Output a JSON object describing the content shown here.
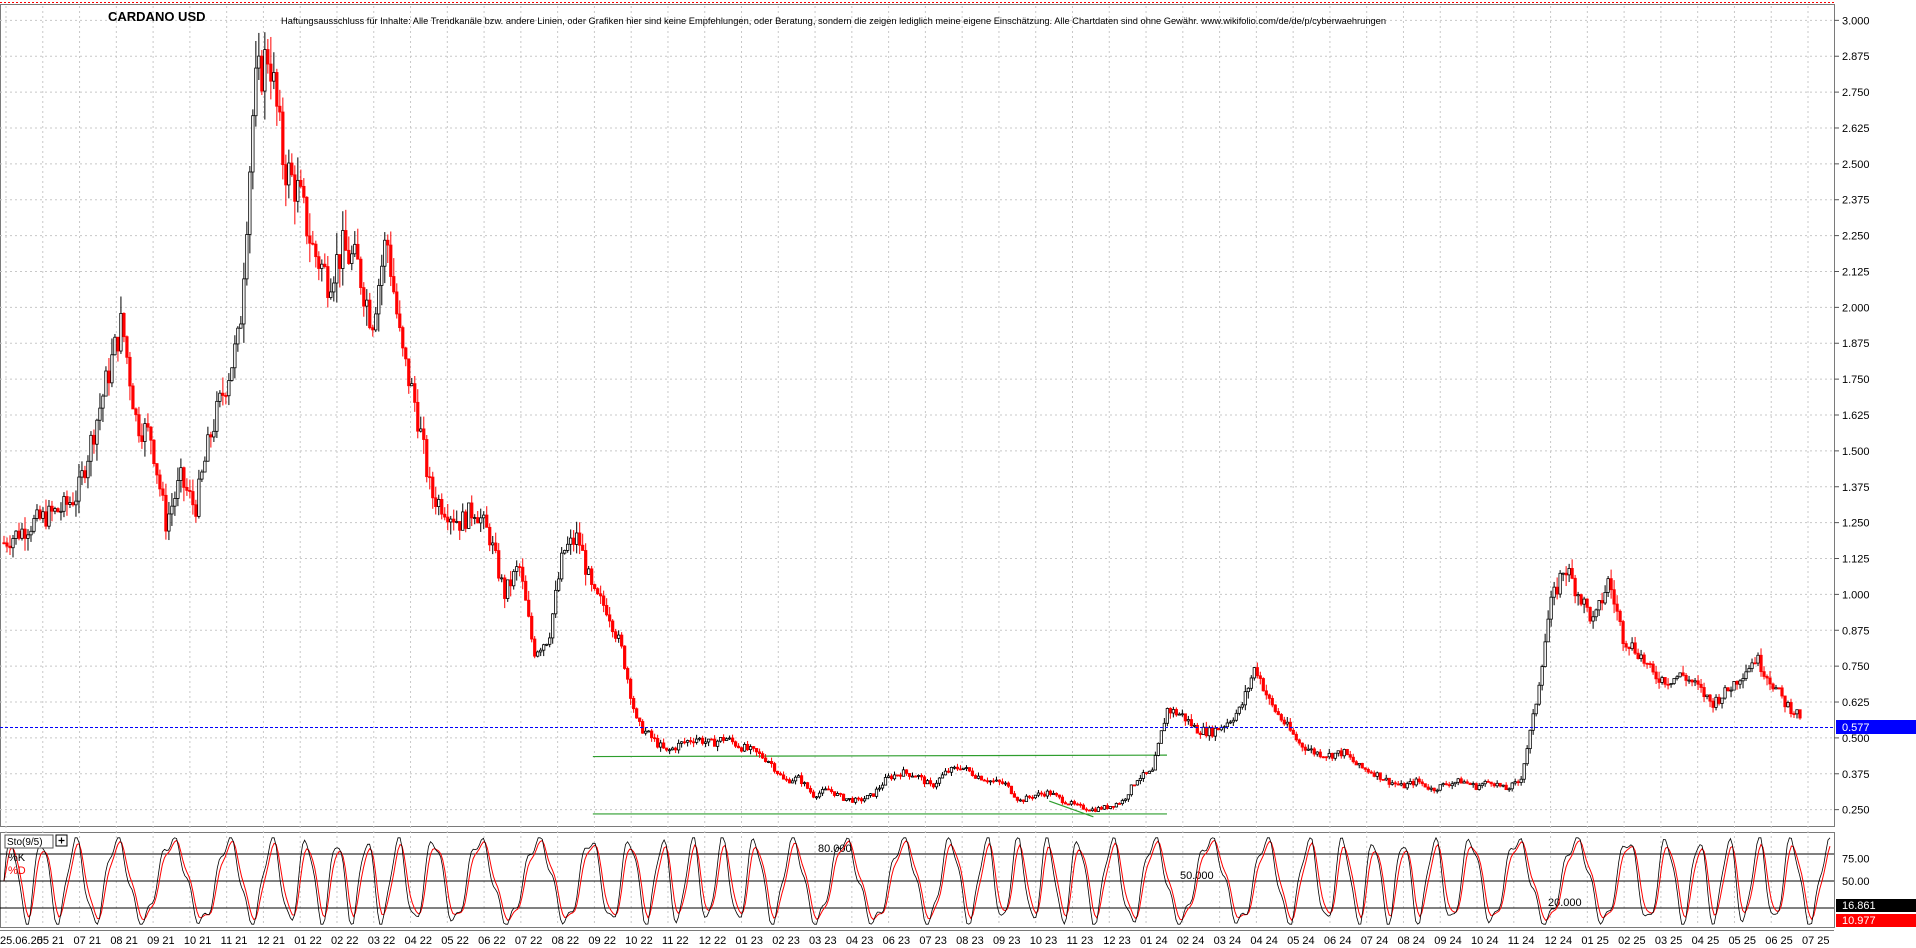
{
  "title": "CARDANO USD",
  "disclaimer": "Haftungsausschluss für Inhalte: Alle Trendkanäle bzw. andere Linien, oder Grafiken hier sind keine Empfehlungen, oder Beratung, sondern die zeigen lediglich meine eigene Einschätzung. Alle Chartdaten sind ohne Gewähr. www.wikifolio.com/de/de/p/cyberwaehrungen",
  "colors": {
    "up": "#000000",
    "down": "#ff0000",
    "trend": "#2e9e2e",
    "price_badge": "#0000ff",
    "k_badge": "#000000",
    "d_badge": "#ff0000",
    "grid": "#c8c8c8",
    "stoch_k": "#000000",
    "stoch_d": "#ff0000"
  },
  "chart_data": [
    {
      "type": "candlestick",
      "title": "CARDANO USD",
      "ylim": [
        0.2,
        3.05
      ],
      "y_ticks": [
        "3.000",
        "2.875",
        "2.750",
        "2.625",
        "2.500",
        "2.375",
        "2.250",
        "2.125",
        "2.000",
        "1.875",
        "1.750",
        "1.625",
        "1.500",
        "1.375",
        "1.250",
        "1.125",
        "1.000",
        "0.875",
        "0.750",
        "0.625",
        "0.500",
        "0.375",
        "0.250"
      ],
      "x_ticks": [
        "25.06.25",
        "05 21",
        "07 21",
        "08 21",
        "09 21",
        "10 21",
        "11 21",
        "12 21",
        "01 22",
        "02 22",
        "03 22",
        "04 22",
        "05 22",
        "06 22",
        "07 22",
        "08 22",
        "09 22",
        "10 22",
        "11 22",
        "12 22",
        "01 23",
        "02 23",
        "03 23",
        "04 23",
        "06 23",
        "07 23",
        "08 23",
        "09 23",
        "10 23",
        "11 23",
        "12 23",
        "01 24",
        "02 24",
        "03 24",
        "04 24",
        "05 24",
        "06 24",
        "07 24",
        "08 24",
        "09 24",
        "10 24",
        "11 24",
        "12 24",
        "01 25",
        "02 25",
        "03 25",
        "04 25",
        "05 25",
        "06 25",
        "07 25"
      ],
      "last_price": "0.577",
      "grid": true,
      "price_path": [
        [
          0,
          1.18
        ],
        [
          2,
          1.25
        ],
        [
          4,
          1.3
        ],
        [
          5,
          1.35
        ],
        [
          6,
          1.55
        ],
        [
          7,
          1.75
        ],
        [
          8,
          1.95
        ],
        [
          9,
          1.6
        ],
        [
          10,
          1.55
        ],
        [
          11,
          1.25
        ],
        [
          12,
          1.4
        ],
        [
          13,
          1.3
        ],
        [
          14,
          1.55
        ],
        [
          16,
          1.9
        ],
        [
          17,
          2.75
        ],
        [
          18,
          2.9
        ],
        [
          19,
          2.5
        ],
        [
          20,
          2.4
        ],
        [
          21,
          2.2
        ],
        [
          22,
          2.1
        ],
        [
          23,
          2.2
        ],
        [
          24,
          2.15
        ],
        [
          25,
          1.95
        ],
        [
          26,
          2.25
        ],
        [
          27,
          1.85
        ],
        [
          28,
          1.65
        ],
        [
          29,
          1.35
        ],
        [
          30,
          1.3
        ],
        [
          31,
          1.25
        ],
        [
          32,
          1.3
        ],
        [
          33,
          1.2
        ],
        [
          34,
          1.0
        ],
        [
          35,
          1.1
        ],
        [
          36,
          0.8
        ],
        [
          37,
          0.85
        ],
        [
          38,
          1.15
        ],
        [
          39,
          1.2
        ],
        [
          40,
          1.0
        ],
        [
          41,
          0.95
        ],
        [
          42,
          0.8
        ],
        [
          43,
          0.55
        ],
        [
          44,
          0.5
        ],
        [
          45,
          0.45
        ],
        [
          46,
          0.48
        ],
        [
          47,
          0.5
        ],
        [
          48,
          0.48
        ],
        [
          49,
          0.5
        ],
        [
          50,
          0.47
        ],
        [
          51,
          0.45
        ],
        [
          52,
          0.42
        ],
        [
          53,
          0.35
        ],
        [
          54,
          0.36
        ],
        [
          55,
          0.3
        ],
        [
          56,
          0.32
        ],
        [
          57,
          0.29
        ],
        [
          58,
          0.28
        ],
        [
          59,
          0.3
        ],
        [
          60,
          0.36
        ],
        [
          61,
          0.38
        ],
        [
          62,
          0.37
        ],
        [
          63,
          0.33
        ],
        [
          64,
          0.38
        ],
        [
          65,
          0.4
        ],
        [
          66,
          0.37
        ],
        [
          67,
          0.35
        ],
        [
          68,
          0.34
        ],
        [
          69,
          0.28
        ],
        [
          70,
          0.3
        ],
        [
          71,
          0.31
        ],
        [
          72,
          0.28
        ],
        [
          73,
          0.26
        ],
        [
          74,
          0.25
        ],
        [
          75,
          0.26
        ],
        [
          76,
          0.28
        ],
        [
          77,
          0.36
        ],
        [
          78,
          0.38
        ],
        [
          79,
          0.6
        ],
        [
          80,
          0.58
        ],
        [
          81,
          0.53
        ],
        [
          82,
          0.52
        ],
        [
          83,
          0.55
        ],
        [
          84,
          0.6
        ],
        [
          85,
          0.75
        ],
        [
          86,
          0.62
        ],
        [
          87,
          0.55
        ],
        [
          88,
          0.48
        ],
        [
          89,
          0.45
        ],
        [
          90,
          0.44
        ],
        [
          91,
          0.45
        ],
        [
          92,
          0.4
        ],
        [
          93,
          0.38
        ],
        [
          94,
          0.35
        ],
        [
          95,
          0.33
        ],
        [
          96,
          0.35
        ],
        [
          97,
          0.32
        ],
        [
          98,
          0.34
        ],
        [
          99,
          0.35
        ],
        [
          100,
          0.33
        ],
        [
          101,
          0.35
        ],
        [
          102,
          0.32
        ],
        [
          103,
          0.35
        ],
        [
          104,
          0.6
        ],
        [
          105,
          0.95
        ],
        [
          106,
          1.1
        ],
        [
          107,
          1.0
        ],
        [
          108,
          0.9
        ],
        [
          109,
          1.05
        ],
        [
          110,
          0.85
        ],
        [
          111,
          0.8
        ],
        [
          112,
          0.72
        ],
        [
          113,
          0.7
        ],
        [
          114,
          0.72
        ],
        [
          115,
          0.68
        ],
        [
          116,
          0.62
        ],
        [
          117,
          0.66
        ],
        [
          118,
          0.72
        ],
        [
          119,
          0.78
        ],
        [
          120,
          0.7
        ],
        [
          121,
          0.62
        ],
        [
          122,
          0.577
        ]
      ],
      "trendlines": [
        {
          "from": [
            40,
            0.435
          ],
          "to": [
            79,
            0.44
          ]
        },
        {
          "from": [
            40,
            0.235
          ],
          "to": [
            79,
            0.235
          ]
        },
        {
          "from": [
            71,
            0.28
          ],
          "to": [
            74,
            0.225
          ]
        }
      ]
    },
    {
      "type": "line",
      "title": "Sto(9/5)",
      "ylim": [
        0,
        100
      ],
      "y_ticks": [
        "75.00",
        "50.00"
      ],
      "levels": [
        {
          "value": 80,
          "label": "80.000"
        },
        {
          "value": 50,
          "label": "50.000"
        },
        {
          "value": 20,
          "label": "20.000"
        }
      ],
      "series": [
        {
          "name": "%K",
          "last": "16.861"
        },
        {
          "name": "%D",
          "last": "10.977"
        }
      ]
    }
  ]
}
